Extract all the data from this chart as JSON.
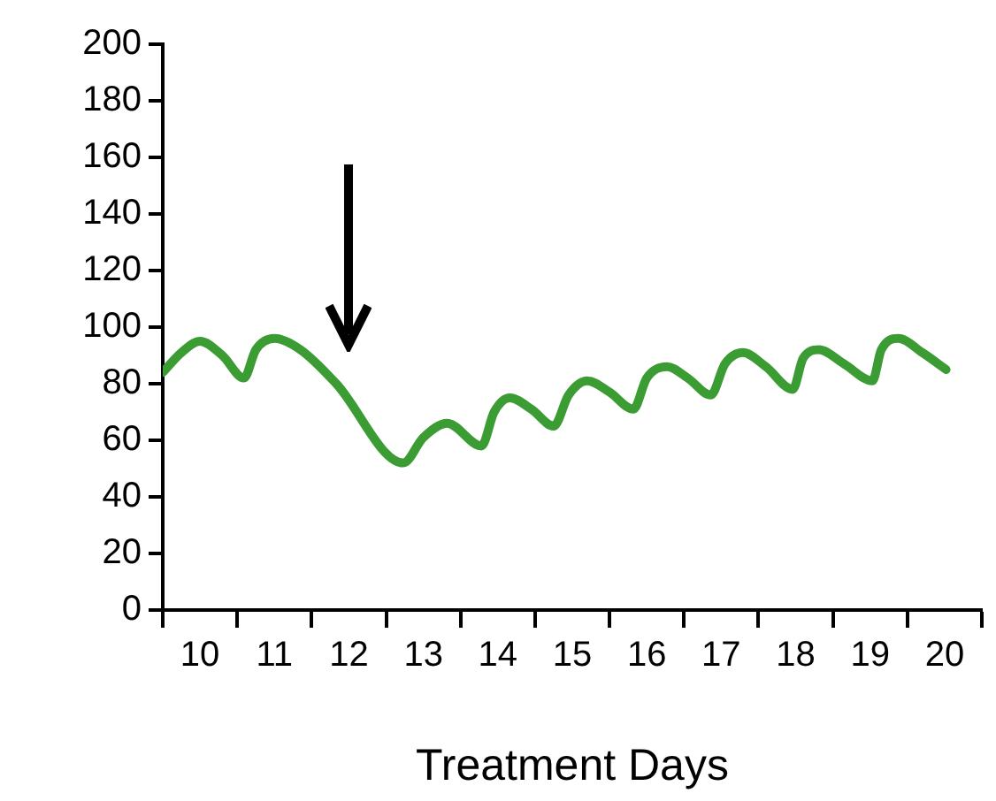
{
  "chart_data": {
    "type": "line",
    "xlabel": "Treatment Days",
    "x": [
      9.5,
      9.75,
      10.0,
      10.3,
      10.59,
      10.75,
      11.0,
      11.35,
      11.83,
      12.73,
      13.0,
      13.32,
      13.78,
      13.95,
      14.16,
      14.45,
      14.75,
      14.95,
      15.2,
      15.5,
      15.82,
      16.0,
      16.27,
      16.55,
      16.86,
      17.05,
      17.29,
      17.6,
      17.96,
      18.1,
      18.31,
      18.65,
      19.03,
      19.15,
      19.38,
      19.7,
      20.02
    ],
    "series": [
      {
        "color": "#3c9c34",
        "values": [
          84,
          91,
          95,
          90,
          82,
          92,
          96,
          92,
          80,
          52,
          61,
          66,
          58,
          70,
          75,
          71,
          65,
          76,
          81,
          77,
          71,
          82,
          86,
          82,
          76,
          87,
          91,
          86,
          78,
          89,
          92,
          87,
          81,
          92,
          96,
          91,
          85
        ]
      }
    ],
    "xlim": [
      9.5,
      20.5
    ],
    "xticks": [
      {
        "value": 9.5,
        "label": null
      },
      10,
      {
        "value": 10.5,
        "label": null
      },
      11,
      {
        "value": 11.5,
        "label": null
      },
      12,
      {
        "value": 12.5,
        "label": null
      },
      13,
      {
        "value": 13.5,
        "label": null
      },
      14,
      {
        "value": 14.5,
        "label": null
      },
      15,
      {
        "value": 15.5,
        "label": null
      },
      16,
      {
        "value": 16.5,
        "label": null
      },
      17,
      {
        "value": 17.5,
        "label": null
      },
      18,
      {
        "value": 18.5,
        "label": null
      },
      19,
      {
        "value": 19.5,
        "label": null
      },
      20,
      {
        "value": 20.5,
        "label": null
      }
    ],
    "ylim": [
      0,
      200
    ],
    "yticks": [
      0,
      20,
      40,
      60,
      80,
      100,
      120,
      140,
      160,
      180,
      200
    ],
    "grid": false,
    "legend": false,
    "marker": "none",
    "line_style": "solid"
  }
}
